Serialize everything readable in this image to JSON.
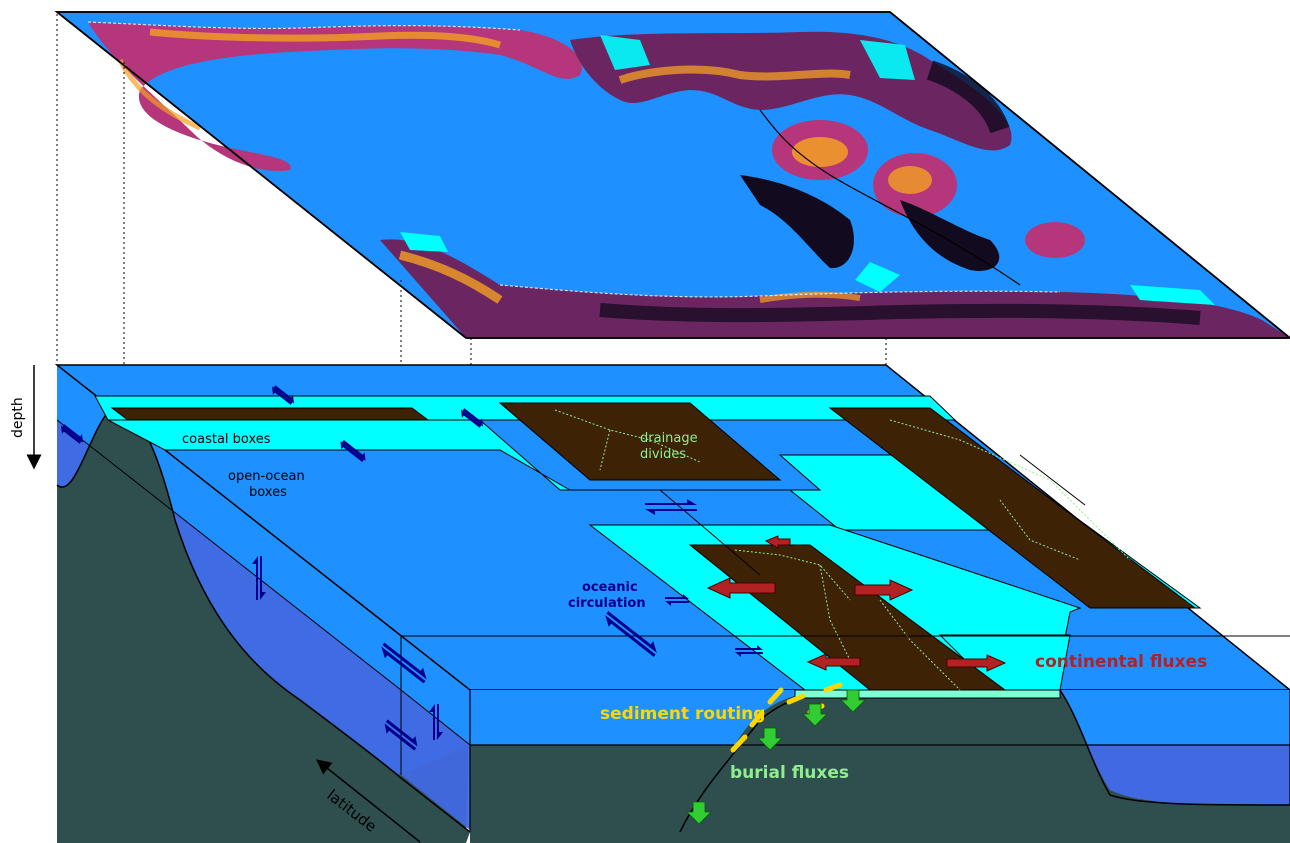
{
  "labels": {
    "coastal_boxes": "coastal boxes",
    "open_ocean_line1": "open-ocean",
    "open_ocean_line2": "boxes",
    "drainage_line1": "drainage",
    "drainage_line2": "divides",
    "oceanic_line1": "oceanic",
    "oceanic_line2": "circulation",
    "continental_fluxes": "continental fluxes",
    "sediment_routing": "sediment routing",
    "burial_fluxes": "burial fluxes",
    "depth": "depth",
    "latitude": "latitude"
  },
  "colors": {
    "ocean_surface": "#1e90ff",
    "ocean_deep": "#4169e1",
    "coastal": "#00ffff",
    "shelf": "#7fffd4",
    "land": "#3d2206",
    "seafloor": "#2f4f4f",
    "ocean_arrow": "#00008b",
    "continental_arrow": "#b22222",
    "sediment": "#ffd700",
    "burial": "#32cd32",
    "label_dark": "#00008b",
    "label_green": "#90ee90",
    "map_hot": "#f4a023",
    "map_mid": "#b5367a",
    "map_dark": "#120a1e"
  },
  "icons": [
    "ocean-exchange-arrow-icon",
    "continental-flux-arrow-icon",
    "burial-arrow-icon",
    "depth-arrow-icon",
    "latitude-arrow-icon"
  ]
}
